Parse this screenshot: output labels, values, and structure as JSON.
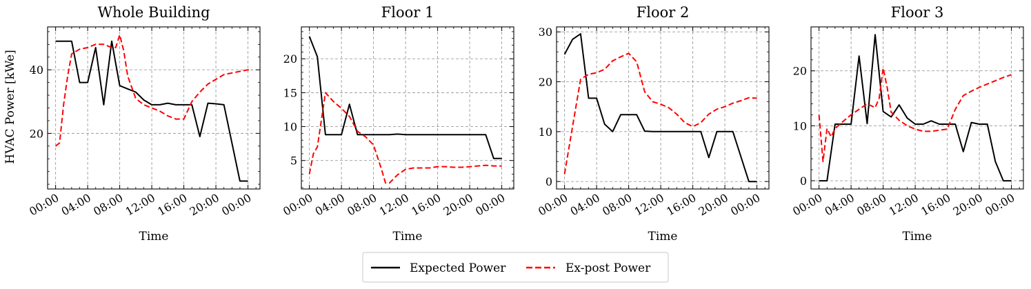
{
  "figure": {
    "ylabel": "HVAC Power [kWe]",
    "xlabel": "Time",
    "legend": {
      "expected_label": "Expected Power",
      "expost_label": "Ex-post Power",
      "placement": "bottom-center"
    },
    "colors": {
      "expected": "#000000",
      "expost": "#ff0000",
      "grid": "#9a9a9a"
    }
  },
  "chart_data": [
    {
      "type": "line",
      "title": "Whole Building",
      "xlabel": "Time",
      "ylabel": "HVAC Power [kWe]",
      "xlim": [
        -1,
        25.5
      ],
      "ylim": [
        2.5,
        53.5
      ],
      "yticks": [
        20,
        40
      ],
      "xticks": [
        0,
        4,
        8,
        12,
        16,
        20,
        24
      ],
      "xtick_labels": [
        "00:00",
        "04:00",
        "08:00",
        "12:00",
        "16:00",
        "20:00",
        "00:00"
      ],
      "series": [
        {
          "name": "Expected Power",
          "x": [
            0,
            1,
            2,
            3,
            4,
            5,
            6,
            7,
            8,
            9,
            10,
            11,
            12,
            13,
            14,
            15,
            16,
            17,
            18,
            19,
            20,
            21,
            22,
            23,
            24
          ],
          "y": [
            49,
            49,
            49,
            36,
            36,
            47,
            29,
            49,
            35,
            34,
            33,
            30.5,
            29,
            29,
            29.5,
            29,
            29,
            29,
            19,
            29.5,
            29.3,
            29,
            17,
            5,
            5
          ]
        },
        {
          "name": "Ex-post Power",
          "x": [
            0,
            0.5,
            1,
            1.5,
            2,
            3,
            4,
            5,
            6,
            7,
            7.5,
            8,
            8.5,
            9,
            10,
            11,
            12,
            13,
            14,
            15,
            16,
            17,
            18,
            19,
            20,
            21,
            22,
            23,
            24,
            24.5
          ],
          "y": [
            16,
            17,
            29,
            38,
            45,
            46.5,
            47,
            48,
            48,
            47,
            47,
            51,
            46,
            38,
            31,
            29,
            28,
            27,
            25.5,
            24.5,
            24.5,
            30,
            33,
            35.5,
            37,
            38.5,
            39,
            39.5,
            40,
            40
          ]
        }
      ]
    },
    {
      "type": "line",
      "title": "Floor 1",
      "xlabel": "Time",
      "xlim": [
        -1,
        25.5
      ],
      "ylim": [
        0.8,
        24.7
      ],
      "yticks": [
        5,
        10,
        15,
        20
      ],
      "xticks": [
        0,
        4,
        8,
        12,
        16,
        20,
        24
      ],
      "xtick_labels": [
        "00:00",
        "04:00",
        "08:00",
        "12:00",
        "16:00",
        "20:00",
        "00:00"
      ],
      "series": [
        {
          "name": "Expected Power",
          "x": [
            0,
            1,
            2,
            3,
            4,
            5,
            6,
            7,
            8,
            9,
            10,
            11,
            12,
            13,
            14,
            15,
            16,
            17,
            18,
            19,
            20,
            21,
            22,
            23,
            24
          ],
          "y": [
            23.3,
            20.3,
            8.8,
            8.8,
            8.8,
            13.3,
            8.8,
            8.8,
            8.8,
            8.8,
            8.8,
            8.9,
            8.8,
            8.8,
            8.8,
            8.8,
            8.8,
            8.8,
            8.8,
            8.8,
            8.8,
            8.8,
            8.8,
            5.3,
            5.3
          ]
        },
        {
          "name": "Ex-post Power",
          "x": [
            0,
            0.5,
            1,
            1.5,
            2,
            3,
            4,
            5,
            6,
            7,
            8,
            9,
            9.5,
            10,
            11,
            12,
            13,
            14,
            15,
            16,
            17,
            18,
            19,
            20,
            21,
            22,
            23,
            24
          ],
          "y": [
            3,
            6,
            7,
            11,
            15,
            13.7,
            12.7,
            11.5,
            9.3,
            8.5,
            7.3,
            3.7,
            1.7,
            1.7,
            2.9,
            3.7,
            3.9,
            3.9,
            3.9,
            4.1,
            4.1,
            4.0,
            4.0,
            4.1,
            4.2,
            4.3,
            4.2,
            4.2
          ]
        }
      ]
    },
    {
      "type": "line",
      "title": "Floor 2",
      "xlabel": "Time",
      "xlim": [
        -1,
        25.5
      ],
      "ylim": [
        -1.5,
        31
      ],
      "yticks": [
        0,
        10,
        20,
        30
      ],
      "xticks": [
        0,
        4,
        8,
        12,
        16,
        20,
        24
      ],
      "xtick_labels": [
        "00:00",
        "04:00",
        "08:00",
        "12:00",
        "16:00",
        "20:00",
        "00:00"
      ],
      "series": [
        {
          "name": "Expected Power",
          "x": [
            0,
            1,
            2,
            3,
            4,
            5,
            6,
            7,
            8,
            9,
            10,
            11,
            12,
            13,
            14,
            15,
            16,
            17,
            18,
            19,
            20,
            21,
            22,
            23,
            24
          ],
          "y": [
            25.5,
            28.5,
            29.6,
            16.7,
            16.7,
            11.5,
            10,
            13.4,
            13.4,
            13.4,
            10.1,
            10,
            10,
            10,
            10,
            10,
            10,
            10,
            4.8,
            10,
            10,
            10,
            5,
            0,
            0
          ]
        },
        {
          "name": "Ex-post Power",
          "x": [
            0,
            1,
            2,
            3,
            4,
            5,
            6,
            7,
            8,
            9,
            10,
            11,
            12,
            13,
            14,
            15,
            16,
            17,
            18,
            19,
            20,
            21,
            22,
            23,
            24
          ],
          "y": [
            1.5,
            11,
            20.5,
            21.5,
            21.8,
            22.5,
            24.2,
            25,
            25.7,
            24,
            18,
            16,
            15.5,
            14.8,
            13.5,
            11.8,
            11,
            11.8,
            13.5,
            14.5,
            15,
            15.7,
            16.2,
            16.8,
            16.7
          ]
        }
      ]
    },
    {
      "type": "line",
      "title": "Floor 3",
      "xlabel": "Time",
      "xlim": [
        -1,
        25.5
      ],
      "ylim": [
        -1.5,
        28
      ],
      "yticks": [
        0,
        10,
        20
      ],
      "xticks": [
        0,
        4,
        8,
        12,
        16,
        20,
        24
      ],
      "xtick_labels": [
        "00:00",
        "04:00",
        "08:00",
        "12:00",
        "16:00",
        "20:00",
        "00:00"
      ],
      "series": [
        {
          "name": "Expected Power",
          "x": [
            0,
            1,
            2,
            3,
            4,
            5,
            6,
            7,
            8,
            9,
            10,
            11,
            12,
            13,
            14,
            15,
            16,
            17,
            18,
            19,
            20,
            21,
            22,
            23,
            24
          ],
          "y": [
            0,
            0,
            10.3,
            10.3,
            10.3,
            22.7,
            10.4,
            26.6,
            12.6,
            11.6,
            13.8,
            11.4,
            10.3,
            10.3,
            10.9,
            10.3,
            10.3,
            10.3,
            5.3,
            10.6,
            10.3,
            10.3,
            3.5,
            0,
            0
          ]
        },
        {
          "name": "Ex-post Power",
          "x": [
            0,
            0.5,
            1,
            1.5,
            2,
            3,
            4,
            5,
            6,
            7,
            7.5,
            8,
            8.5,
            9,
            10,
            11,
            12,
            13,
            14,
            15,
            16,
            17,
            18,
            19,
            20,
            21,
            22,
            23,
            24
          ],
          "y": [
            12,
            3.5,
            9.5,
            8,
            9.5,
            10.8,
            12,
            13,
            14,
            13.3,
            15,
            20.5,
            17,
            12.5,
            11,
            10,
            9.4,
            9,
            9,
            9.2,
            9.4,
            13,
            15.5,
            16.3,
            17,
            17.6,
            18.2,
            18.8,
            19.3
          ]
        }
      ]
    }
  ]
}
